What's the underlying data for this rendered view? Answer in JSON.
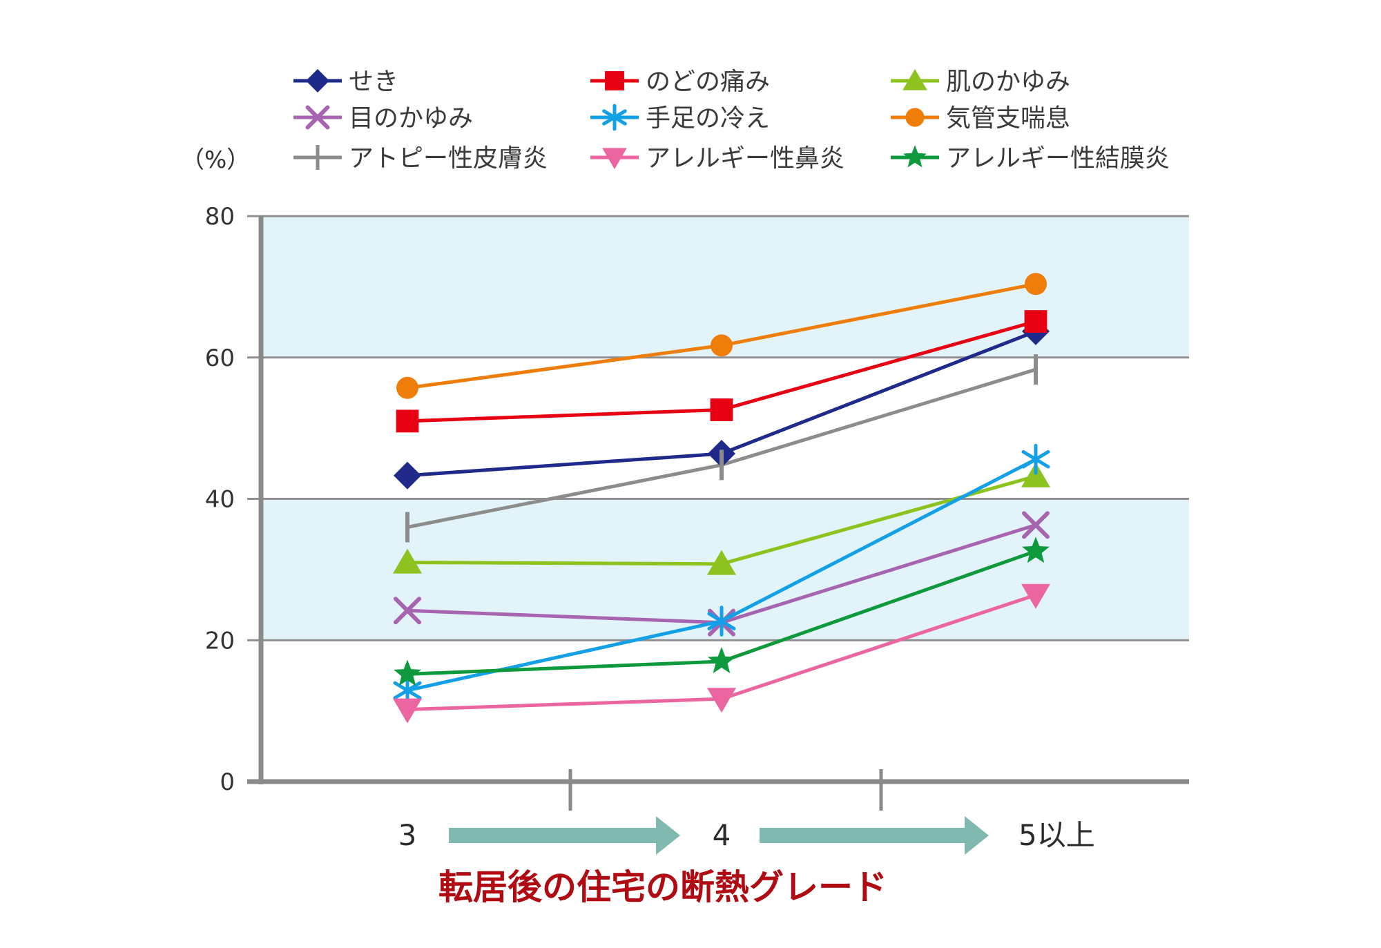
{
  "chart_data": {
    "type": "line",
    "title": "",
    "xlabel": "転居後の住宅の断熱グレード",
    "ylabel": "（%）",
    "categories": [
      "3",
      "4",
      "5以上"
    ],
    "ylim": [
      0,
      80
    ],
    "yticks": [
      0,
      20,
      40,
      60,
      80
    ],
    "grid": true,
    "shaded_bands": [
      [
        20,
        40
      ],
      [
        60,
        80
      ]
    ],
    "band_color": "#e2f4f9",
    "arrow_color": "#7fb9b0",
    "xlabel_color": "#b00a12",
    "legend_position": "top",
    "series": [
      {
        "name": "せき",
        "marker": "diamond",
        "color": "#1f2a8a",
        "values": [
          43.3,
          46.4,
          63.7
        ]
      },
      {
        "name": "のどの痛み",
        "marker": "square",
        "color": "#e60012",
        "values": [
          51.0,
          52.6,
          65.1
        ]
      },
      {
        "name": "肌のかゆみ",
        "marker": "triangle-up",
        "color": "#8dc21f",
        "values": [
          31.0,
          30.8,
          43.2
        ]
      },
      {
        "name": "目のかゆみ",
        "marker": "x",
        "color": "#a764b0",
        "values": [
          24.2,
          22.5,
          36.3
        ]
      },
      {
        "name": "手足の冷え",
        "marker": "asterisk",
        "color": "#14a0e6",
        "values": [
          12.9,
          22.7,
          45.6
        ]
      },
      {
        "name": "気管支喘息",
        "marker": "circle",
        "color": "#ee7d0a",
        "values": [
          55.7,
          61.7,
          70.4
        ]
      },
      {
        "name": "アトピー性皮膚炎",
        "marker": "plus",
        "color": "#8c8c8c",
        "values": [
          36.0,
          44.8,
          58.3
        ]
      },
      {
        "name": "アレルギー性鼻炎",
        "marker": "triangle-down",
        "color": "#eb66a0",
        "values": [
          10.2,
          11.7,
          26.4
        ]
      },
      {
        "name": "アレルギー性結膜炎",
        "marker": "star",
        "color": "#0e9a3c",
        "values": [
          15.2,
          17.0,
          32.6
        ]
      }
    ]
  }
}
